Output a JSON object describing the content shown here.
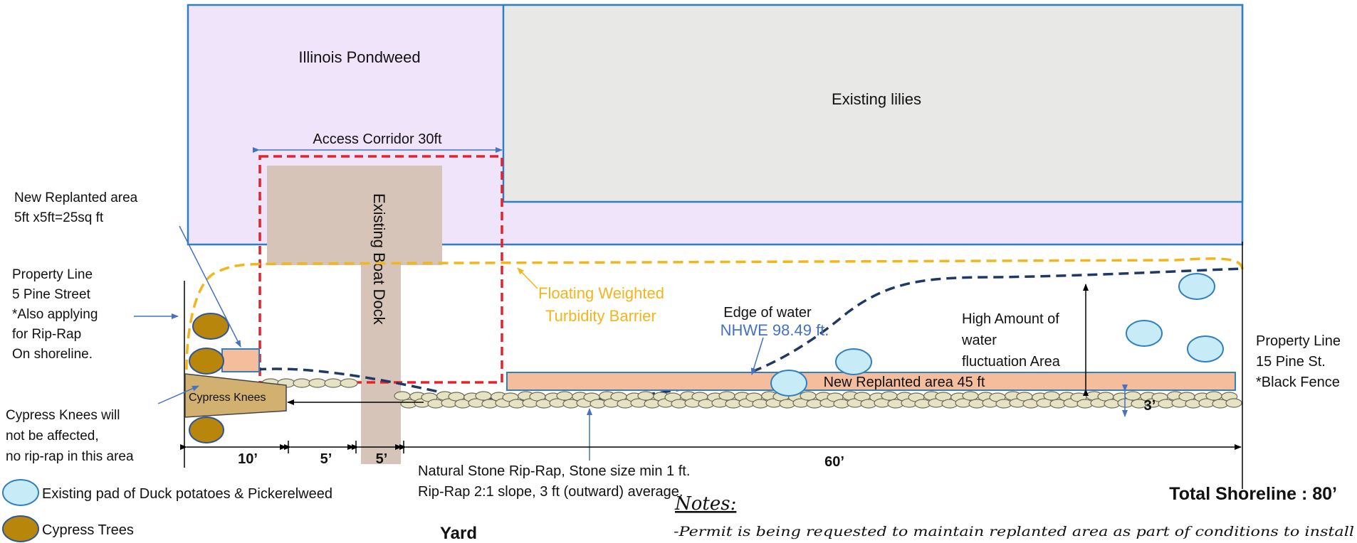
{
  "regions": {
    "pondweed": "Illinois Pondweed",
    "lilies": "Existing lilies",
    "access_corridor": "Access Corridor 30ft",
    "boat_dock": "Existing Boat Dock",
    "replanted_45": "New Replanted area 45 ft",
    "cypress_knees": "Cypress Knees"
  },
  "labels": {
    "replanted_small": [
      "New Replanted area",
      "5ft x5ft=25sq ft"
    ],
    "property_left": [
      "Property Line",
      "5 Pine Street",
      "*Also  applying",
      "for Rip-Rap",
      "On shoreline."
    ],
    "cypress_note": [
      "Cypress  Knees  will",
      "not be affected,",
      "no rip-rap in this area"
    ],
    "barrier": [
      "Floating Weighted",
      "Turbidity Barrier"
    ],
    "edge_of_water": "Edge of water",
    "nhwe": "NHWE 98.49 ft.",
    "fluctuation": [
      "High Amount of",
      "water",
      "fluctuation Area"
    ],
    "property_right": [
      "Property Line",
      "15 Pine St.",
      "*Black Fence"
    ],
    "riprap": [
      "Natural Stone Rip-Rap, Stone size min 1 ft.",
      "Rip-Rap 2:1 slope, 3 ft (outward) average."
    ],
    "depth_3": "3’",
    "total_shoreline": "Total Shoreline : 80’",
    "yard": "Yard"
  },
  "dimensions": [
    "10’",
    "5’",
    "5’",
    "60’"
  ],
  "legend": [
    {
      "label": "Existing pad of Duck potatoes & Pickerelweed",
      "symbol": "duck-potato-pad"
    },
    {
      "label": "Cypress Trees",
      "symbol": "cypress-tree"
    }
  ],
  "notes": {
    "heading": "Notes:",
    "text": "-Permit is being requested to maintain replanted area as part of conditions to install"
  },
  "colors": {
    "pondweed_fill": "#f0e4fb",
    "lilies_fill": "#e8e9e6",
    "region_stroke": "#2f7fc1",
    "dock_fill": "#d5c4b7",
    "corridor_dash": "#e8202a",
    "barrier": "#f2b51c",
    "water_edge": "#1f3864",
    "replant_fill": "#f6bd9d",
    "duck_pad_fill": "#c8ecf7",
    "cypress_fill": "#b8860b",
    "stone_fill": "#e6e2c4",
    "nhwe_text": "#4472c4"
  }
}
